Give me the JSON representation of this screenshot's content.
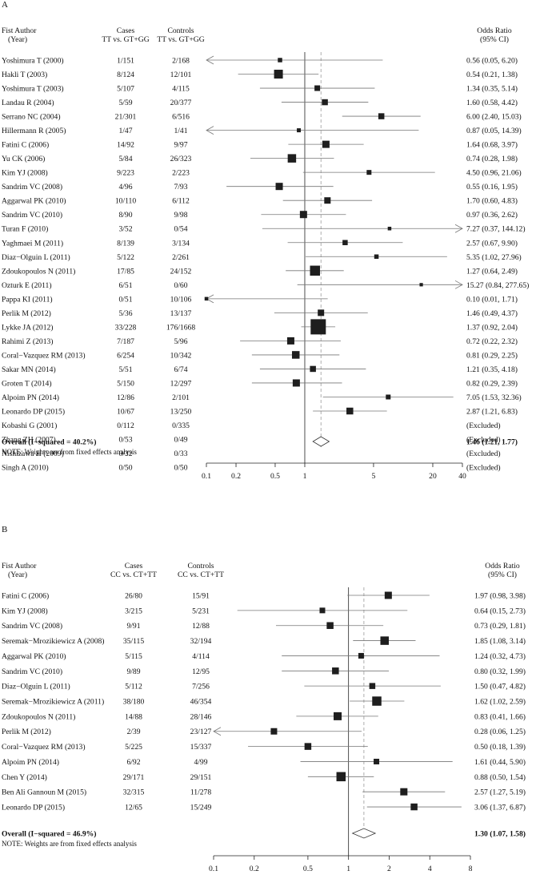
{
  "chart_data": [
    {
      "type": "forest",
      "panel_label": "A",
      "header": {
        "study": [
          "Fist Author",
          "(Year)"
        ],
        "cases": [
          "Cases",
          "TT vs. GT+GG"
        ],
        "controls": [
          "Controls",
          "TT vs. GT+GG"
        ],
        "or": [
          "Odds Ratio",
          "(95% CI)"
        ]
      },
      "xscale": "log",
      "xlim": [
        0.1,
        40
      ],
      "xticks": [
        0.1,
        0.2,
        0.5,
        1,
        5,
        20,
        40
      ],
      "xtick_labels": [
        "0.1",
        "0.2",
        "0.5",
        "1",
        "5",
        "20",
        "40"
      ],
      "studies": [
        {
          "name": "Yoshimura T (2000)",
          "cases": "1/151",
          "controls": "2/168",
          "or": 0.56,
          "lo": 0.05,
          "hi": 6.2,
          "label": "0.56 (0.05, 6.20)",
          "w": 0.25
        },
        {
          "name": "Hakli T (2003)",
          "cases": "8/124",
          "controls": "12/101",
          "or": 0.54,
          "lo": 0.21,
          "hi": 1.38,
          "label": "0.54 (0.21, 1.38)",
          "w": 0.8
        },
        {
          "name": "Yoshimura T (2003)",
          "cases": "5/107",
          "controls": "4/115",
          "or": 1.34,
          "lo": 0.35,
          "hi": 5.14,
          "label": "1.34 (0.35, 5.14)",
          "w": 0.4
        },
        {
          "name": "Landau R (2004)",
          "cases": "5/59",
          "controls": "20/377",
          "or": 1.6,
          "lo": 0.58,
          "hi": 4.42,
          "label": "1.60 (0.58, 4.42)",
          "w": 0.45
        },
        {
          "name": "Serrano NC (2004)",
          "cases": "21/301",
          "controls": "6/516",
          "or": 6.0,
          "lo": 2.4,
          "hi": 15.03,
          "label": "6.00 (2.40, 15.03)",
          "w": 0.45
        },
        {
          "name": "Hillermann R (2005)",
          "cases": "1/47",
          "controls": "1/41",
          "or": 0.87,
          "lo": 0.05,
          "hi": 14.39,
          "label": "0.87 (0.05, 14.39)",
          "w": 0.2
        },
        {
          "name": "Fatini C (2006)",
          "cases": "14/92",
          "controls": "9/97",
          "or": 1.64,
          "lo": 0.68,
          "hi": 3.97,
          "label": "1.64 (0.68, 3.97)",
          "w": 0.6
        },
        {
          "name": "Yu CK (2006)",
          "cases": "5/84",
          "controls": "26/323",
          "or": 0.74,
          "lo": 0.28,
          "hi": 1.98,
          "label": "0.74 (0.28, 1.98)",
          "w": 0.75
        },
        {
          "name": "Kim YJ (2008)",
          "cases": "9/223",
          "controls": "2/223",
          "or": 4.5,
          "lo": 0.96,
          "hi": 21.06,
          "label": "4.50 (0.96, 21.06)",
          "w": 0.3
        },
        {
          "name": "Sandrim VC (2008)",
          "cases": "4/96",
          "controls": "7/93",
          "or": 0.55,
          "lo": 0.16,
          "hi": 1.95,
          "label": "0.55 (0.16, 1.95)",
          "w": 0.6
        },
        {
          "name": "Aggarwal PK (2010)",
          "cases": "10/110",
          "controls": "6/112",
          "or": 1.7,
          "lo": 0.6,
          "hi": 4.83,
          "label": "1.70 (0.60, 4.83)",
          "w": 0.5
        },
        {
          "name": "Sandrim VC (2010)",
          "cases": "8/90",
          "controls": "9/98",
          "or": 0.97,
          "lo": 0.36,
          "hi": 2.62,
          "label": "0.97 (0.36, 2.62)",
          "w": 0.6
        },
        {
          "name": "Turan F (2010)",
          "cases": "3/52",
          "controls": "0/54",
          "or": 7.27,
          "lo": 0.37,
          "hi": 144.12,
          "label": "7.27 (0.37, 144.12)",
          "w": 0.15
        },
        {
          "name": "Yaghmaei M (2011)",
          "cases": "8/139",
          "controls": "3/134",
          "or": 2.57,
          "lo": 0.67,
          "hi": 9.9,
          "label": "2.57 (0.67, 9.90)",
          "w": 0.35
        },
        {
          "name": "Diaz−Olguin L (2011)",
          "cases": "5/122",
          "controls": "2/261",
          "or": 5.35,
          "lo": 1.02,
          "hi": 27.96,
          "label": "5.35 (1.02, 27.96)",
          "w": 0.25
        },
        {
          "name": "Zdoukopoulos N (2011)",
          "cases": "17/85",
          "controls": "24/152",
          "or": 1.27,
          "lo": 0.64,
          "hi": 2.49,
          "label": "1.27 (0.64, 2.49)",
          "w": 0.95
        },
        {
          "name": "Ozturk E (2011)",
          "cases": "6/51",
          "controls": "0/60",
          "or": 15.27,
          "lo": 0.84,
          "hi": 277.65,
          "label": "15.27 (0.84, 277.65)",
          "w": 0.12
        },
        {
          "name": "Pappa KI (2011)",
          "cases": "0/51",
          "controls": "10/106",
          "or": 0.1,
          "lo": 0.01,
          "hi": 1.71,
          "label": "0.10 (0.01, 1.71)",
          "w": 0.15
        },
        {
          "name": "Perlik M (2012)",
          "cases": "5/36",
          "controls": "13/137",
          "or": 1.46,
          "lo": 0.49,
          "hi": 4.37,
          "label": "1.46 (0.49, 4.37)",
          "w": 0.5
        },
        {
          "name": "Lykke JA (2012)",
          "cases": "33/228",
          "controls": "176/1668",
          "or": 1.37,
          "lo": 0.92,
          "hi": 2.04,
          "label": "1.37 (0.92, 2.04)",
          "w": 1.6
        },
        {
          "name": "Rahimi Z (2013)",
          "cases": "7/187",
          "controls": "5/96",
          "or": 0.72,
          "lo": 0.22,
          "hi": 2.32,
          "label": "0.72 (0.22, 2.32)",
          "w": 0.6
        },
        {
          "name": "Coral−Vazquez RM (2013)",
          "cases": "6/254",
          "controls": "10/342",
          "or": 0.81,
          "lo": 0.29,
          "hi": 2.25,
          "label": "0.81 (0.29, 2.25)",
          "w": 0.65
        },
        {
          "name": "Sakar MN (2014)",
          "cases": "5/51",
          "controls": "6/74",
          "or": 1.21,
          "lo": 0.35,
          "hi": 4.18,
          "label": "1.21 (0.35, 4.18)",
          "w": 0.45
        },
        {
          "name": "Groten T (2014)",
          "cases": "5/150",
          "controls": "12/297",
          "or": 0.82,
          "lo": 0.29,
          "hi": 2.39,
          "label": "0.82 (0.29, 2.39)",
          "w": 0.6
        },
        {
          "name": "Alpoim PN (2014)",
          "cases": "12/86",
          "controls": "2/101",
          "or": 7.05,
          "lo": 1.53,
          "hi": 32.36,
          "label": "7.05 (1.53, 32.36)",
          "w": 0.3
        },
        {
          "name": "Leonardo DP (2015)",
          "cases": "10/67",
          "controls": "13/250",
          "or": 2.87,
          "lo": 1.21,
          "hi": 6.83,
          "label": "2.87 (1.21, 6.83)",
          "w": 0.55
        },
        {
          "name": "Kobashi G (2001)",
          "cases": "0/112",
          "controls": "0/335",
          "or": null,
          "label": "(Excluded)"
        },
        {
          "name": "Zhang ZH (2007)",
          "cases": "0/53",
          "controls": "0/49",
          "or": null,
          "label": "(Excluded)"
        },
        {
          "name": "Nishizawa H (2009)",
          "cases": "0/32",
          "controls": "0/33",
          "or": null,
          "label": "(Excluded)"
        },
        {
          "name": "Singh A (2010)",
          "cases": "0/50",
          "controls": "0/50",
          "or": null,
          "label": "(Excluded)"
        }
      ],
      "overall": {
        "name": "Overall  (I−squared = 40.2%)",
        "or": 1.46,
        "lo": 1.21,
        "hi": 1.77,
        "label": "1.46 (1.21, 1.77)"
      },
      "note": "NOTE: Weights are from fixed effects analysis"
    },
    {
      "type": "forest",
      "panel_label": "B",
      "header": {
        "study": [
          "Fist Author",
          "(Year)"
        ],
        "cases": [
          "Cases",
          "CC vs. CT+TT"
        ],
        "controls": [
          "Controls",
          "CC vs. CT+TT"
        ],
        "or": [
          "Odds Ratio",
          "(95% CI)"
        ]
      },
      "xscale": "log",
      "xlim": [
        0.1,
        8
      ],
      "xticks": [
        0.1,
        0.2,
        0.5,
        1,
        2,
        4,
        8
      ],
      "xtick_labels": [
        "0.1",
        "0.2",
        "0.5",
        "1",
        "2",
        "4",
        "8"
      ],
      "studies": [
        {
          "name": "Fatini C (2006)",
          "cases": "26/80",
          "controls": "15/91",
          "or": 1.97,
          "lo": 0.98,
          "hi": 3.98,
          "label": "1.97 (0.98, 3.98)",
          "w": 0.6
        },
        {
          "name": "Kim YJ (2008)",
          "cases": "3/215",
          "controls": "5/231",
          "or": 0.64,
          "lo": 0.15,
          "hi": 2.73,
          "label": "0.64 (0.15, 2.73)",
          "w": 0.4
        },
        {
          "name": "Sandrim VC (2008)",
          "cases": "9/91",
          "controls": "12/88",
          "or": 0.73,
          "lo": 0.29,
          "hi": 1.81,
          "label": "0.73 (0.29, 1.81)",
          "w": 0.55
        },
        {
          "name": "Seremak−Mrozikiewicz A (2008)",
          "cases": "35/115",
          "controls": "32/194",
          "or": 1.85,
          "lo": 1.08,
          "hi": 3.14,
          "label": "1.85 (1.08, 3.14)",
          "w": 0.75
        },
        {
          "name": "Aggarwal PK (2010)",
          "cases": "5/115",
          "controls": "4/114",
          "or": 1.24,
          "lo": 0.32,
          "hi": 4.73,
          "label": "1.24 (0.32, 4.73)",
          "w": 0.4
        },
        {
          "name": "Sandrim VC (2010)",
          "cases": "9/89",
          "controls": "12/95",
          "or": 0.8,
          "lo": 0.32,
          "hi": 1.99,
          "label": "0.80 (0.32, 1.99)",
          "w": 0.55
        },
        {
          "name": "Diaz−Olguin L (2011)",
          "cases": "5/112",
          "controls": "7/256",
          "or": 1.5,
          "lo": 0.47,
          "hi": 4.82,
          "label": "1.50 (0.47, 4.82)",
          "w": 0.45
        },
        {
          "name": "Seremak−Mrozikiewicz A (2011)",
          "cases": "38/180",
          "controls": "46/354",
          "or": 1.62,
          "lo": 1.02,
          "hi": 2.59,
          "label": "1.62 (1.02, 2.59)",
          "w": 0.85
        },
        {
          "name": "Zdoukopoulos N (2011)",
          "cases": "14/88",
          "controls": "28/146",
          "or": 0.83,
          "lo": 0.41,
          "hi": 1.66,
          "label": "0.83 (0.41, 1.66)",
          "w": 0.7
        },
        {
          "name": "Perlik M (2012)",
          "cases": "2/39",
          "controls": "23/127",
          "or": 0.28,
          "lo": 0.06,
          "hi": 1.25,
          "label": "0.28 (0.06, 1.25)",
          "w": 0.5
        },
        {
          "name": "Coral−Vazquez RM (2013)",
          "cases": "5/225",
          "controls": "15/337",
          "or": 0.5,
          "lo": 0.18,
          "hi": 1.39,
          "label": "0.50 (0.18, 1.39)",
          "w": 0.55
        },
        {
          "name": "Alpoim PN (2014)",
          "cases": "6/92",
          "controls": "4/99",
          "or": 1.61,
          "lo": 0.44,
          "hi": 5.9,
          "label": "1.61 (0.44, 5.90)",
          "w": 0.4
        },
        {
          "name": "Chen Y (2014)",
          "cases": "29/171",
          "controls": "29/151",
          "or": 0.88,
          "lo": 0.5,
          "hi": 1.54,
          "label": "0.88 (0.50, 1.54)",
          "w": 0.85
        },
        {
          "name": "Ben Ali Gannoun M (2015)",
          "cases": "32/315",
          "controls": "11/278",
          "or": 2.57,
          "lo": 1.27,
          "hi": 5.19,
          "label": "2.57 (1.27, 5.19)",
          "w": 0.6
        },
        {
          "name": "Leonardo DP (2015)",
          "cases": "12/65",
          "controls": "15/249",
          "or": 3.06,
          "lo": 1.37,
          "hi": 6.87,
          "label": "3.06 (1.37, 6.87)",
          "w": 0.55
        }
      ],
      "overall": {
        "name": "Overall  (I−squared = 46.9%)",
        "or": 1.3,
        "lo": 1.07,
        "hi": 1.58,
        "label": "1.30 (1.07, 1.58)"
      },
      "note": "NOTE: Weights are from fixed effects analysis"
    }
  ]
}
